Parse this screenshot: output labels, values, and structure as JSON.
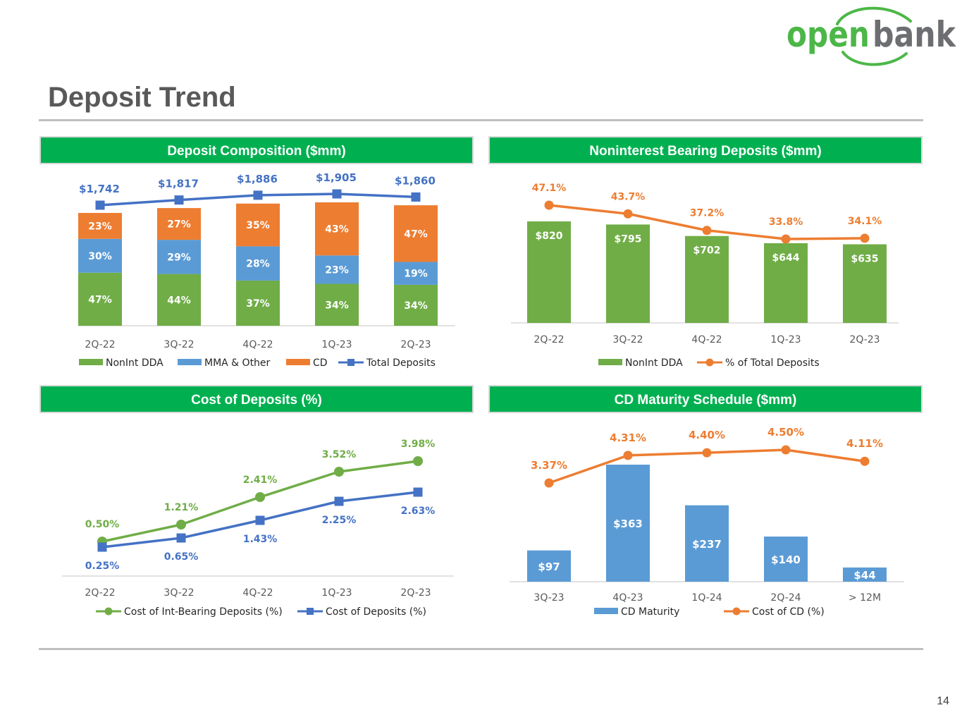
{
  "logo": {
    "left": "open",
    "right": "bank",
    "green": "#4cb748",
    "gray": "#6d6e71"
  },
  "page": {
    "title": "Deposit Trend",
    "number": "14"
  },
  "colors": {
    "green": "#70ad47",
    "blue": "#5b9bd5",
    "orange": "#ed7d31",
    "lineBlue": "#4472c4",
    "header": "#00b050"
  },
  "panels": {
    "composition": {
      "title": "Deposit Composition ($mm)"
    },
    "nonint": {
      "title": "Noninterest Bearing Deposits ($mm)"
    },
    "cost": {
      "title": "Cost of Deposits (%)"
    },
    "maturity": {
      "title": "CD Maturity Schedule ($mm)"
    }
  },
  "chart_data": [
    {
      "id": "composition",
      "type": "bar",
      "stacked": true,
      "percent_stacked": true,
      "title": "Deposit Composition ($mm)",
      "categories": [
        "2Q-22",
        "3Q-22",
        "4Q-22",
        "1Q-23",
        "2Q-23"
      ],
      "series": [
        {
          "name": "NonInt DDA",
          "values": [
            47,
            44,
            37,
            34,
            34
          ],
          "labels": [
            "47%",
            "44%",
            "37%",
            "34%",
            "34%"
          ],
          "color": "#70ad47"
        },
        {
          "name": "MMA & Other",
          "values": [
            30,
            29,
            28,
            23,
            19
          ],
          "labels": [
            "30%",
            "29%",
            "28%",
            "23%",
            "19%"
          ],
          "color": "#5b9bd5"
        },
        {
          "name": "CD",
          "values": [
            23,
            27,
            35,
            43,
            47
          ],
          "labels": [
            "23%",
            "27%",
            "35%",
            "43%",
            "47%"
          ],
          "color": "#ed7d31"
        }
      ],
      "line": {
        "name": "Total Deposits",
        "values": [
          1742,
          1817,
          1886,
          1905,
          1860
        ],
        "labels": [
          "$1,742",
          "$1,817",
          "$1,886",
          "$1,905",
          "$1,860"
        ],
        "color": "#4472c4"
      },
      "legend": [
        "NonInt DDA",
        "MMA & Other",
        "CD",
        "Total Deposits"
      ],
      "legend_position": "bottom"
    },
    {
      "id": "nonint",
      "type": "bar",
      "title": "Noninterest Bearing Deposits ($mm)",
      "categories": [
        "2Q-22",
        "3Q-22",
        "4Q-22",
        "1Q-23",
        "2Q-23"
      ],
      "series": [
        {
          "name": "NonInt DDA",
          "values": [
            820,
            795,
            702,
            644,
            635
          ],
          "labels": [
            "$820",
            "$795",
            "$702",
            "$644",
            "$635"
          ],
          "color": "#70ad47"
        }
      ],
      "line": {
        "name": "% of Total Deposits",
        "values": [
          47.1,
          43.7,
          37.2,
          33.8,
          34.1
        ],
        "labels": [
          "47.1%",
          "43.7%",
          "37.2%",
          "33.8%",
          "34.1%"
        ],
        "color": "#ed7d31"
      },
      "legend": [
        "NonInt DDA",
        "% of Total Deposits"
      ],
      "legend_position": "bottom"
    },
    {
      "id": "cost",
      "type": "line",
      "title": "Cost of Deposits (%)",
      "categories": [
        "2Q-22",
        "3Q-22",
        "4Q-22",
        "1Q-23",
        "2Q-23"
      ],
      "series": [
        {
          "name": "Cost of Int-Bearing Deposits (%)",
          "values": [
            0.5,
            1.21,
            2.41,
            3.52,
            3.98
          ],
          "labels": [
            "0.50%",
            "1.21%",
            "2.41%",
            "3.52%",
            "3.98%"
          ],
          "color": "#70ad47"
        },
        {
          "name": "Cost of Deposits (%)",
          "values": [
            0.25,
            0.65,
            1.43,
            2.25,
            2.63
          ],
          "labels": [
            "0.25%",
            "0.65%",
            "1.43%",
            "2.25%",
            "2.63%"
          ],
          "color": "#4472c4"
        }
      ],
      "legend": [
        "Cost of Int-Bearing Deposits (%)",
        "Cost of Deposits (%)"
      ],
      "legend_position": "bottom"
    },
    {
      "id": "maturity",
      "type": "bar",
      "title": "CD Maturity Schedule ($mm)",
      "categories": [
        "3Q-23",
        "4Q-23",
        "1Q-24",
        "2Q-24",
        "> 12M"
      ],
      "series": [
        {
          "name": "CD Maturity",
          "values": [
            97,
            363,
            237,
            140,
            44
          ],
          "labels": [
            "$97",
            "$363",
            "$237",
            "$140",
            "$44"
          ],
          "color": "#5b9bd5"
        }
      ],
      "line": {
        "name": "Cost of CD (%)",
        "values": [
          3.37,
          4.31,
          4.4,
          4.5,
          4.11
        ],
        "labels": [
          "3.37%",
          "4.31%",
          "4.40%",
          "4.50%",
          "4.11%"
        ],
        "color": "#ed7d31"
      },
      "legend": [
        "CD Maturity",
        "Cost of CD (%)"
      ],
      "legend_position": "bottom"
    }
  ]
}
